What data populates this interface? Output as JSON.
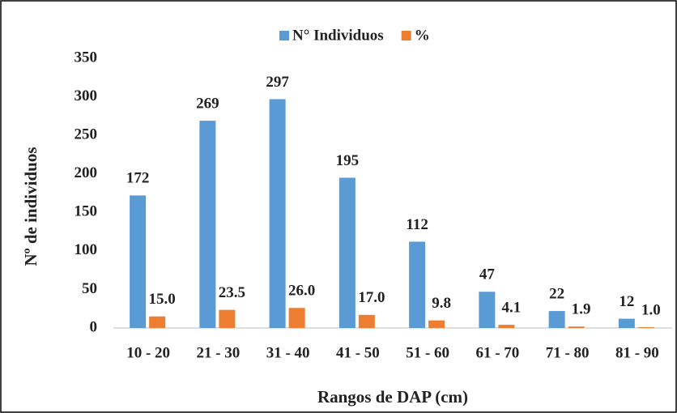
{
  "chart_data": {
    "type": "bar",
    "categories": [
      "10 - 20",
      "21 - 30",
      "31 - 40",
      "41 - 50",
      "51 - 60",
      "61 - 70",
      "71 - 80",
      "81 - 90"
    ],
    "series": [
      {
        "name": "N° Individuos",
        "color": "#5b9bd5",
        "values": [
          172,
          269,
          297,
          195,
          112,
          47,
          22,
          12
        ]
      },
      {
        "name": "%",
        "color": "#ed7d31",
        "values": [
          15,
          23.5,
          26,
          17,
          9.8,
          4.1,
          1.9,
          1
        ],
        "value_labels": [
          "15.0",
          "23.5",
          "26.0",
          "17.0",
          "9.8",
          "4.1",
          "1.9",
          "1.0"
        ]
      }
    ],
    "xlabel": "Rangos de DAP (cm)",
    "ylabel": "Nº de individuos",
    "ylim": [
      0,
      350
    ],
    "yticks": [
      0,
      50,
      100,
      150,
      200,
      250,
      300,
      350
    ],
    "grid": false,
    "legend": "top"
  }
}
